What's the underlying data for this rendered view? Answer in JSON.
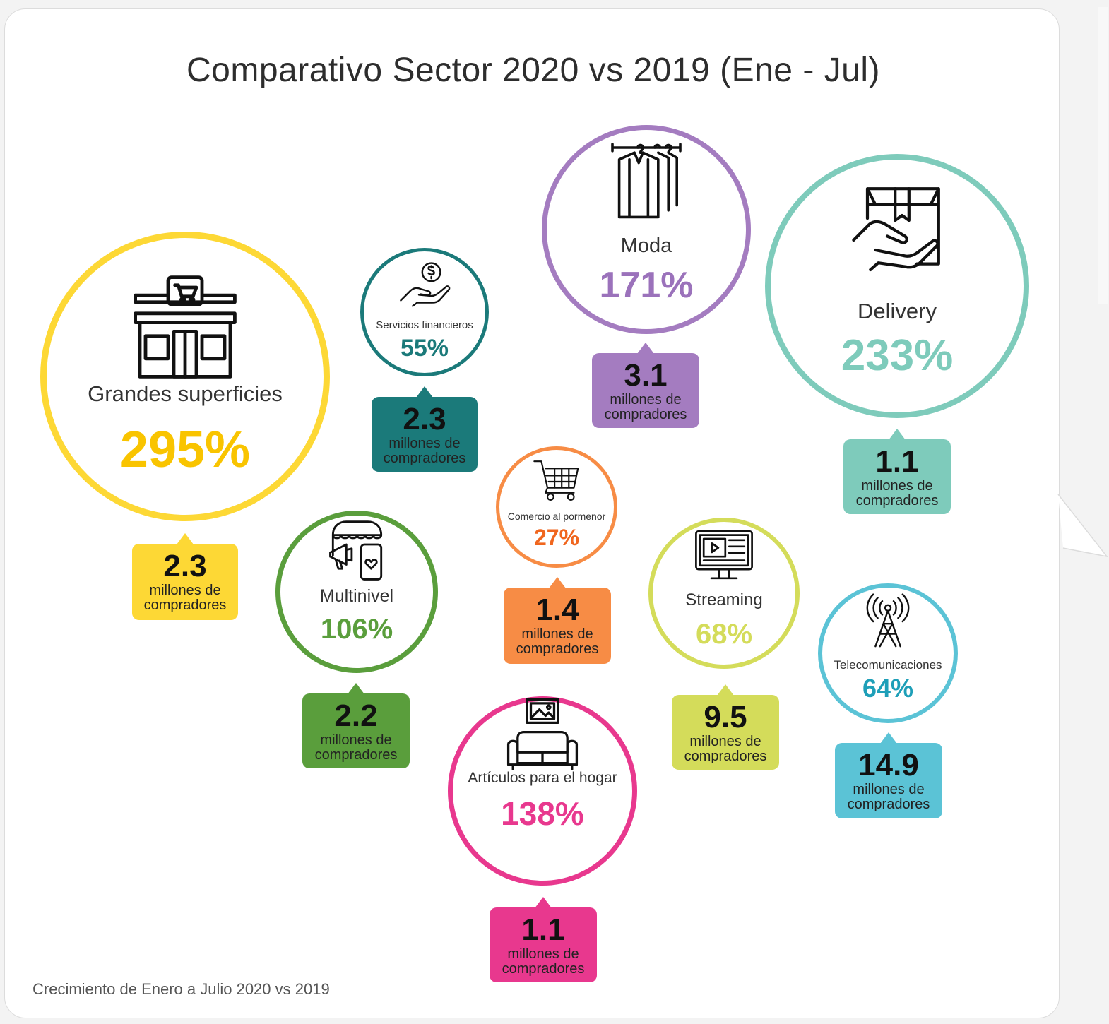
{
  "title": "Comparativo Sector 2020 vs 2019 (Ene - Jul)",
  "footnote": "Crecimiento de Enero a Julio 2020 vs 2019",
  "unit_label": "millones de compradores",
  "chart_data": {
    "type": "bubble-infographic",
    "title": "Comparativo Sector 2020 vs 2019 (Ene - Jul)",
    "note": "Crecimiento de Enero a Julio 2020 vs 2019",
    "sectors": [
      {
        "key": "grandes",
        "name": "Grandes superficies",
        "growth": "295%",
        "growth_value": 295,
        "buyers": "2.3",
        "buyers_value": 2.3,
        "unit": "millones de compradores",
        "color": "#fdd835",
        "pct_color": "#f9c400",
        "icon": "storefront-icon"
      },
      {
        "key": "financieros",
        "name": "Servicios financieros",
        "growth": "55%",
        "growth_value": 55,
        "buyers": "2.3",
        "buyers_value": 2.3,
        "unit": "millones de compradores",
        "color": "#1b7a7a",
        "pct_color": "#1b7a7a",
        "icon": "hand-coin-icon"
      },
      {
        "key": "moda",
        "name": "Moda",
        "growth": "171%",
        "growth_value": 171,
        "buyers": "3.1",
        "buyers_value": 3.1,
        "unit": "millones de compradores",
        "color": "#a47cc0",
        "pct_color": "#9b72bb",
        "icon": "clothes-rack-icon"
      },
      {
        "key": "delivery",
        "name": "Delivery",
        "growth": "233%",
        "growth_value": 233,
        "buyers": "1.1",
        "buyers_value": 1.1,
        "unit": "millones de compradores",
        "color": "#7ecbbb",
        "pct_color": "#7ecbbb",
        "icon": "package-hand-icon"
      },
      {
        "key": "comercio",
        "name": "Comercio al pormenor",
        "growth": "27%",
        "growth_value": 27,
        "buyers": "1.4",
        "buyers_value": 1.4,
        "unit": "millones de compradores",
        "color": "#f78c45",
        "pct_color": "#f0661e",
        "icon": "shopping-cart-icon"
      },
      {
        "key": "multinivel",
        "name": "Multinivel",
        "growth": "106%",
        "growth_value": 106,
        "buyers": "2.2",
        "buyers_value": 2.2,
        "unit": "millones de compradores",
        "color": "#5a9e3c",
        "pct_color": "#5a9e3c",
        "icon": "megaphone-phone-icon"
      },
      {
        "key": "streaming",
        "name": "Streaming",
        "growth": "68%",
        "growth_value": 68,
        "buyers": "9.5",
        "buyers_value": 9.5,
        "unit": "millones de compradores",
        "color": "#d4dc5a",
        "pct_color": "#d4dc5a",
        "icon": "video-screen-icon"
      },
      {
        "key": "telecom",
        "name": "Telecomunicaciones",
        "growth": "64%",
        "growth_value": 64,
        "buyers": "14.9",
        "buyers_value": 14.9,
        "unit": "millones de compradores",
        "color": "#5bc3d6",
        "pct_color": "#1e9fb8",
        "icon": "antenna-tower-icon"
      },
      {
        "key": "hogar",
        "name": "Artículos para el hogar",
        "growth": "138%",
        "growth_value": 138,
        "buyers": "1.1",
        "buyers_value": 1.1,
        "unit": "millones de compradores",
        "color": "#e8388e",
        "pct_color": "#e8388e",
        "icon": "sofa-picture-icon"
      }
    ]
  }
}
